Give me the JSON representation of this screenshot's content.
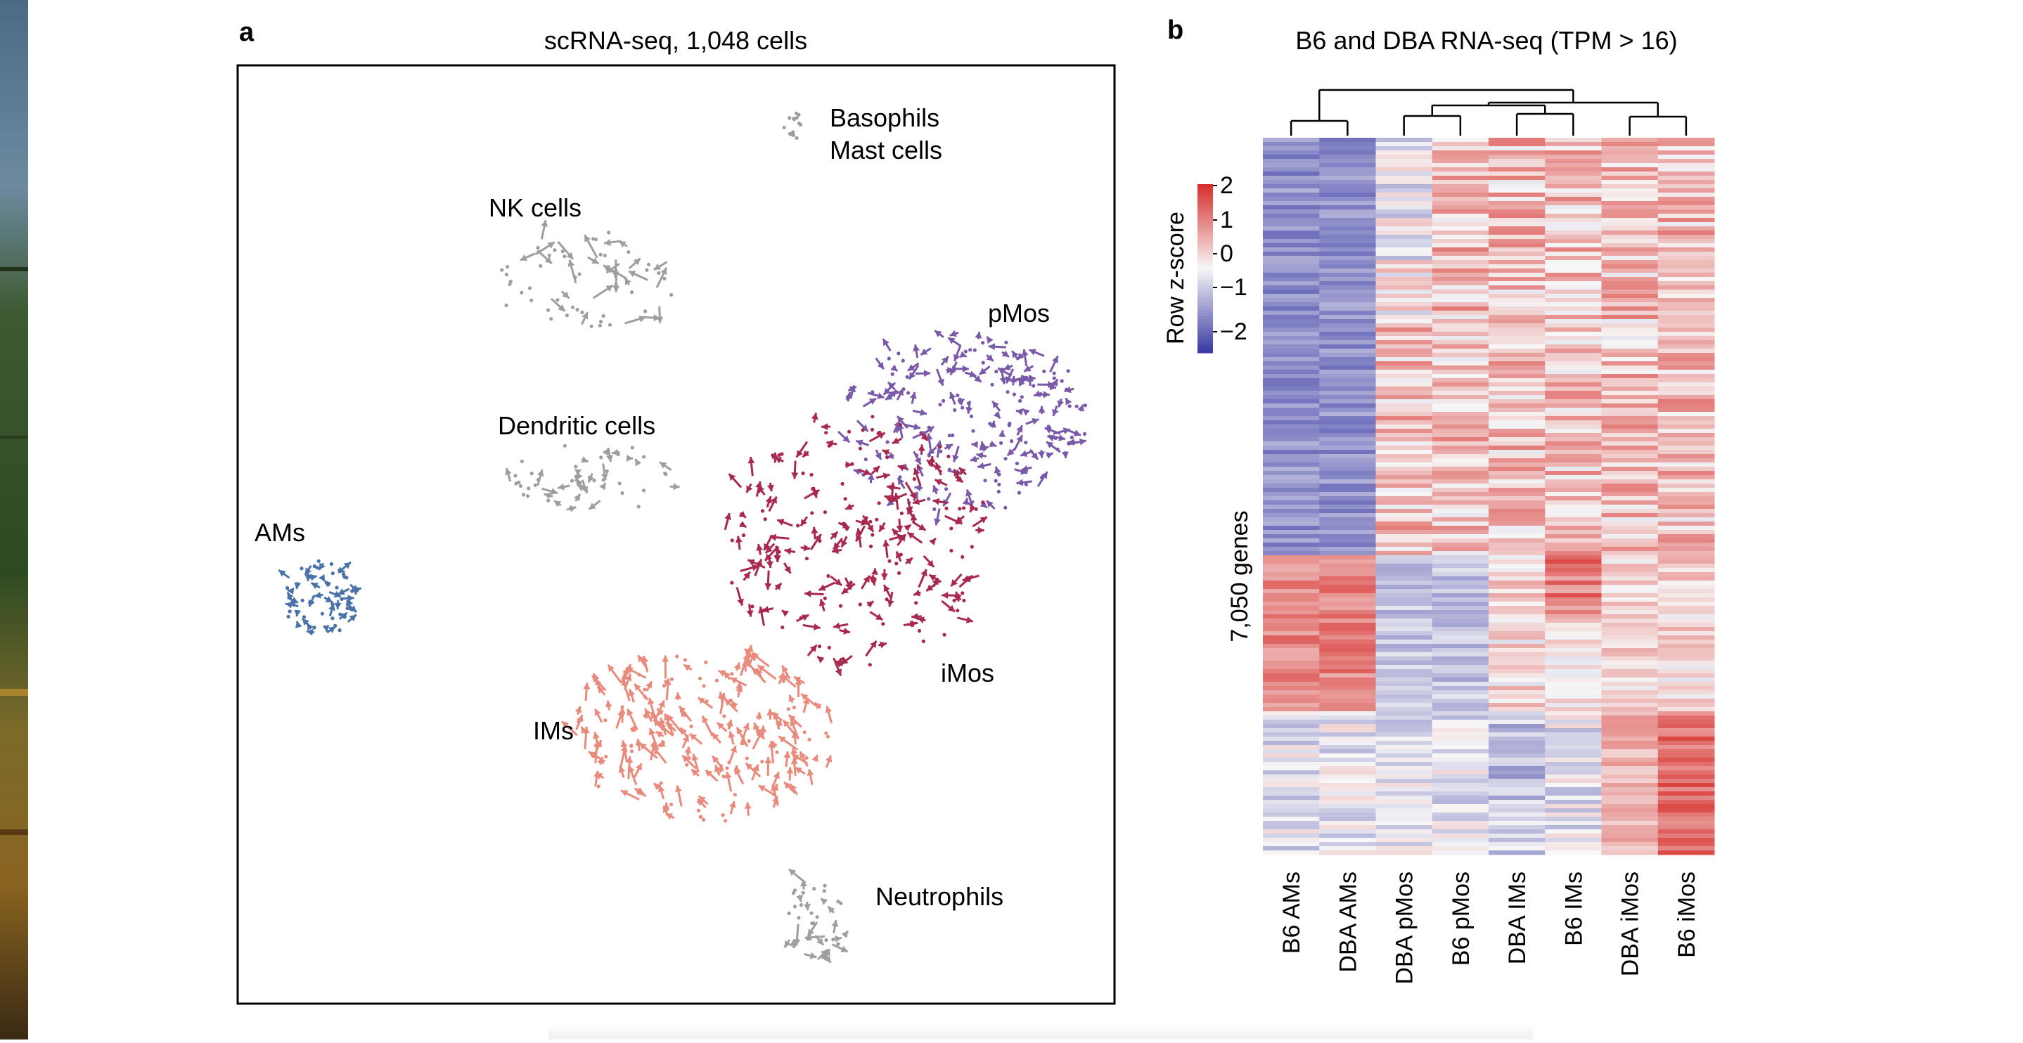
{
  "panel_a": {
    "letter": "a",
    "title": "scRNA-seq, 1,048 cells",
    "clusters": [
      {
        "key": "basophils",
        "label_lines": [
          "Basophils",
          "Mast cells"
        ],
        "color": "#9e9e9e"
      },
      {
        "key": "nk",
        "label_lines": [
          "NK cells"
        ],
        "color": "#9e9e9e"
      },
      {
        "key": "pmos",
        "label_lines": [
          "pMos"
        ],
        "color": "#7a5aa8"
      },
      {
        "key": "dc",
        "label_lines": [
          "Dendritic cells"
        ],
        "color": "#9e9e9e"
      },
      {
        "key": "ams",
        "label_lines": [
          "AMs"
        ],
        "color": "#4a72a8"
      },
      {
        "key": "imos",
        "label_lines": [
          "iMos"
        ],
        "color": "#a8294d"
      },
      {
        "key": "ims",
        "label_lines": [
          "IMs"
        ],
        "color": "#e88a7c"
      },
      {
        "key": "neutrophils",
        "label_lines": [
          "Neutrophils"
        ],
        "color": "#9e9e9e"
      }
    ]
  },
  "panel_b": {
    "letter": "b",
    "title": "B6 and DBA RNA-seq (TPM > 16)",
    "legend_title": "Row z-score",
    "legend_ticks": [
      "2",
      "1",
      "0",
      "−1",
      "−2"
    ],
    "row_label": "7,050 genes",
    "columns": [
      "B6 AMs",
      "DBA AMs",
      "DBA pMos",
      "B6 pMos",
      "DBA IMs",
      "B6 IMs",
      "DBA iMos",
      "B6 iMos"
    ],
    "colors": {
      "high": "#d7302c",
      "mid": "#f7f7f7",
      "low": "#3b3ba6"
    }
  }
}
